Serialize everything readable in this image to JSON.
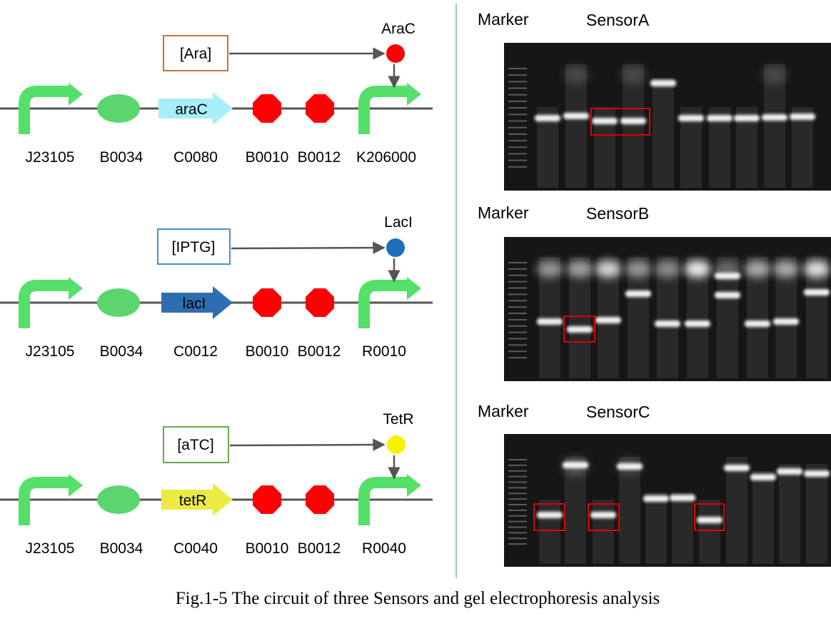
{
  "caption": "Fig.1-5 The circuit of three Sensors and gel electrophoresis analysis",
  "colors": {
    "promoter": "#55e06a",
    "rbs": "#5bd66e",
    "terminator": "#ff0000",
    "line": "#555555",
    "araC_protein": "#ff0000",
    "lacI_protein": "#1d6fba",
    "tetR_protein": "#f7f200",
    "araC_cds": "#a7eef8",
    "lacI_cds": "#2e6db0",
    "tetR_cds": "#eeea44",
    "box_ara": "#c5733a",
    "box_iptg": "#4a90c8",
    "box_atc": "#6aa84f",
    "divider": "#6fa8d8",
    "highlight": "#e00000"
  },
  "circuits": [
    {
      "inducer": "[Ara]",
      "regulator": "AraC",
      "cds_label": "araC",
      "parts": [
        "J23105",
        "B0034",
        "C0080",
        "B0010",
        "B0012",
        "K206000"
      ]
    },
    {
      "inducer": "[IPTG]",
      "regulator": "LacI",
      "cds_label": "lacI",
      "parts": [
        "J23105",
        "B0034",
        "C0012",
        "B0010",
        "B0012",
        "R0010"
      ]
    },
    {
      "inducer": "[aTC]",
      "regulator": "TetR",
      "cds_label": "tetR",
      "parts": [
        "J23105",
        "B0034",
        "C0040",
        "B0010",
        "B0012",
        "R0040"
      ]
    }
  ],
  "gels": [
    {
      "marker_label": "Marker",
      "sensor_label": "SensorA"
    },
    {
      "marker_label": "Marker",
      "sensor_label": "SensorB"
    },
    {
      "marker_label": "Marker",
      "sensor_label": "SensorC"
    }
  ]
}
